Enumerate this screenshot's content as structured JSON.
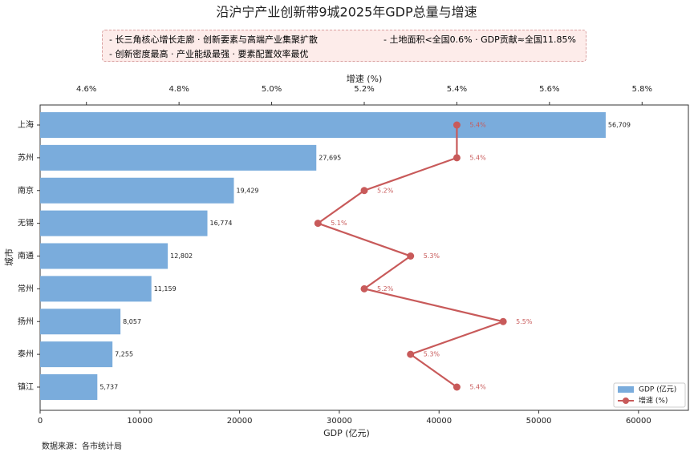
{
  "chart_data": {
    "type": "bar-line",
    "title": "沿沪宁产业创新带9城2025年GDP总量与增速",
    "annotations": [
      "- 长三角核心增长走廊 · 创新要素与高端产业集聚扩散",
      "- 土地面积<全国0.6% · GDP贡献≈全国11.85%",
      "- 创新密度最高 · 产业能级最强 · 要素配置效率最优"
    ],
    "categories": [
      "上海",
      "苏州",
      "南京",
      "无锡",
      "南通",
      "常州",
      "扬州",
      "泰州",
      "镇江"
    ],
    "series": [
      {
        "name": "GDP (亿元)",
        "color": "#7aacdc",
        "values": [
          56709,
          27695,
          19429,
          16774,
          12802,
          11159,
          8057,
          7255,
          5737
        ],
        "value_labels": [
          "56,709",
          "27,695",
          "19,429",
          "16,774",
          "12,802",
          "11,159",
          "8,057",
          "7,255",
          "5,737"
        ]
      },
      {
        "name": "增速 (%)",
        "color": "#c85a5a",
        "axis": "x2",
        "values": [
          5.4,
          5.4,
          5.2,
          5.1,
          5.3,
          5.2,
          5.5,
          5.3,
          5.4
        ],
        "value_labels": [
          "5.4%",
          "5.4%",
          "5.2%",
          "5.1%",
          "5.3%",
          "5.2%",
          "5.5%",
          "5.3%",
          "5.4%"
        ]
      }
    ],
    "xlabel": "GDP (亿元)",
    "x2label": "增速 (%)",
    "ylabel": "城市",
    "xlim": [
      0,
      65000
    ],
    "xticks": [
      0,
      10000,
      20000,
      30000,
      40000,
      50000,
      60000
    ],
    "x2lim": [
      4.5,
      5.9
    ],
    "x2ticks": [
      {
        "value": 4.6,
        "label": "4.6%"
      },
      {
        "value": 4.8,
        "label": "4.8%"
      },
      {
        "value": 5.0,
        "label": "5.0%"
      },
      {
        "value": 5.2,
        "label": "5.2%"
      },
      {
        "value": 5.4,
        "label": "5.4%"
      },
      {
        "value": 5.6,
        "label": "5.6%"
      },
      {
        "value": 5.8,
        "label": "5.8%"
      }
    ],
    "grid": false,
    "legend": "lower right",
    "source": "数据来源：各市统计局"
  }
}
